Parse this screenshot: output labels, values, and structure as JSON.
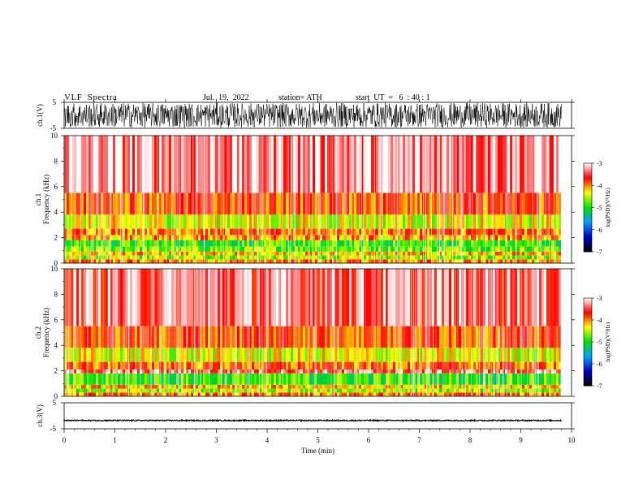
{
  "header": {
    "title": "VLF  Spectra",
    "date": "Jul.  19,  2022",
    "station": "station= ATH",
    "start": "start  UT  =   6  : 40 : 1"
  },
  "chart_data": [
    {
      "type": "line",
      "id": "ch1-waveform",
      "ylabel": "ch.1(V)",
      "ylim": [
        -5,
        5
      ],
      "yticks": [
        "5",
        "-5"
      ],
      "xlim": [
        0,
        10
      ],
      "data_end": 9.8,
      "amplitude_range": [
        -4.8,
        4.8
      ],
      "color": "#000000"
    },
    {
      "type": "heatmap",
      "id": "ch1-spectrogram",
      "ylabel": "ch.1\nFrequency  (kHz)",
      "ylabel_lines": [
        "ch.1",
        "Frequency  (kHz)"
      ],
      "ylim": [
        0,
        10
      ],
      "yticks": [
        "0",
        "2",
        "4",
        "6",
        "8",
        "10"
      ],
      "xlim": [
        0,
        10
      ],
      "data_end": 9.8,
      "bands": [
        {
          "f": [
            0,
            0.3
          ],
          "log_psd": -4.0
        },
        {
          "f": [
            0.3,
            0.6
          ],
          "log_psd": -4.6
        },
        {
          "f": [
            0.6,
            0.9
          ],
          "log_psd": -4.2
        },
        {
          "f": [
            0.9,
            1.3
          ],
          "log_psd": -4.7
        },
        {
          "f": [
            1.3,
            1.8
          ],
          "log_psd": -4.9
        },
        {
          "f": [
            1.8,
            2.2
          ],
          "log_psd": -4.1
        },
        {
          "f": [
            2.2,
            2.7
          ],
          "log_psd": -3.9
        },
        {
          "f": [
            2.7,
            3.8
          ],
          "log_psd": -4.4
        },
        {
          "f": [
            3.8,
            5.5
          ],
          "log_psd": -3.8
        },
        {
          "f": [
            5.5,
            10
          ],
          "log_psd": -3.3
        }
      ]
    },
    {
      "type": "heatmap",
      "id": "ch2-spectrogram",
      "ylabel": "ch.2\nFrequency  (kHz)",
      "ylabel_lines": [
        "ch.2",
        "Frequency  (kHz)"
      ],
      "ylim": [
        0,
        10
      ],
      "yticks": [
        "0",
        "2",
        "4",
        "6",
        "8",
        "10"
      ],
      "xlim": [
        0,
        10
      ],
      "data_end": 9.8,
      "bands": [
        {
          "f": [
            0,
            0.3
          ],
          "log_psd": -4.0
        },
        {
          "f": [
            0.3,
            0.6
          ],
          "log_psd": -4.6
        },
        {
          "f": [
            0.6,
            0.9
          ],
          "log_psd": -4.2
        },
        {
          "f": [
            0.9,
            1.8
          ],
          "log_psd": -4.9
        },
        {
          "f": [
            1.8,
            2.1
          ],
          "log_psd": -3.4
        },
        {
          "f": [
            2.1,
            2.7
          ],
          "log_psd": -3.9
        },
        {
          "f": [
            2.7,
            3.8
          ],
          "log_psd": -4.4
        },
        {
          "f": [
            3.8,
            5.5
          ],
          "log_psd": -3.8
        },
        {
          "f": [
            5.5,
            10
          ],
          "log_psd": -3.4
        }
      ]
    },
    {
      "type": "line",
      "id": "ch3-waveform",
      "ylabel": "ch.3(V)",
      "ylim": [
        -5,
        5
      ],
      "yticks": [
        "5",
        "-5"
      ],
      "xlim": [
        0,
        10
      ],
      "data_end": 9.8,
      "level": -1.8,
      "amplitude_range": [
        -2.0,
        -1.6
      ],
      "color": "#000000"
    }
  ],
  "x_axis": {
    "label": "Time  (min)",
    "ticks": [
      "0",
      "1",
      "2",
      "3",
      "4",
      "5",
      "6",
      "7",
      "8",
      "9",
      "10"
    ]
  },
  "colorbar": {
    "label": "log(PSD)(V²/Hz)",
    "ticks": [
      "-3",
      "-4",
      "-5",
      "-6",
      "-7"
    ],
    "range": [
      -7,
      -3
    ],
    "colors": [
      "#000000",
      "#0000c8",
      "#00a0ff",
      "#00e000",
      "#ffff00",
      "#ff0000",
      "#ffffff"
    ]
  }
}
